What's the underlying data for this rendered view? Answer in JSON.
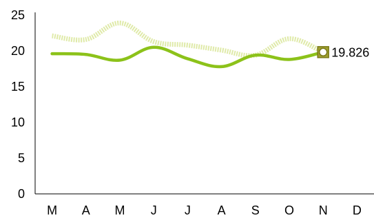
{
  "chart_data": {
    "type": "line",
    "title": "",
    "xlabel": "",
    "ylabel": "",
    "categories": [
      "M",
      "A",
      "M",
      "J",
      "J",
      "A",
      "S",
      "O",
      "N",
      "D"
    ],
    "ylim": [
      0,
      25
    ],
    "yticks": [
      0,
      5,
      10,
      15,
      20,
      25
    ],
    "grid": false,
    "legend": "none",
    "series": [
      {
        "color": "#dfeaa8",
        "style": "dotted",
        "smooth": true,
        "values": [
          22.1,
          21.6,
          23.9,
          21.3,
          20.8,
          20.1,
          19.4,
          21.7,
          19.8,
          null
        ]
      },
      {
        "color": "#8cc21a",
        "style": "solid",
        "smooth": true,
        "values": [
          19.6,
          19.5,
          18.7,
          20.5,
          18.9,
          17.8,
          19.4,
          18.8,
          19.826,
          null
        ],
        "highlight": {
          "category": "N",
          "value": 19.826,
          "label": "19.826",
          "marker_border": "#7a7a18",
          "marker_fill": "#a0a030"
        }
      }
    ]
  }
}
